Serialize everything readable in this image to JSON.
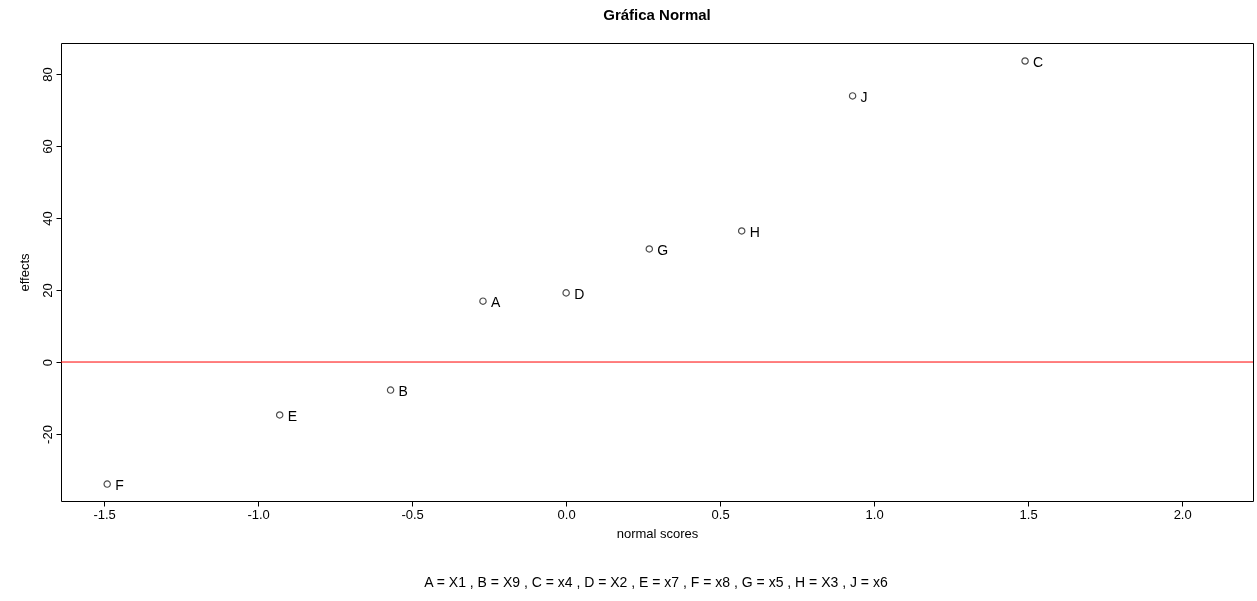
{
  "chart_data": {
    "type": "scatter",
    "title": "Gráfica Normal",
    "xlabel": "normal scores",
    "ylabel": "effects",
    "x": [
      -1.49,
      -0.93,
      -0.57,
      -0.27,
      0.0,
      0.27,
      0.57,
      0.93,
      1.49
    ],
    "series": [
      {
        "color": "#000000",
        "values": [
          -33.9,
          -14.7,
          -7.8,
          16.9,
          19.2,
          31.4,
          36.4,
          73.9,
          83.6
        ]
      }
    ],
    "marker": "circle",
    "grid": false,
    "xlim": [
      -1.64,
      2.23
    ],
    "xticks": [
      -1.5,
      {
        "value": -1.0,
        "label": "-1.0"
      },
      -0.5,
      {
        "value": 0,
        "label": "0.0"
      },
      0.5,
      {
        "value": 1.0,
        "label": "1.0"
      },
      1.5,
      {
        "value": 2.0,
        "label": "2.0"
      }
    ],
    "ylim": [
      -38.6,
      88.6
    ],
    "yticks": [
      -20,
      0,
      20,
      40,
      60,
      80
    ],
    "ref_lines": [
      {
        "axis": "y",
        "value": 0,
        "color": "#ff0000"
      }
    ],
    "annotations": [
      {
        "text": "F",
        "x": -1.49,
        "y": -33.9
      },
      {
        "text": "E",
        "x": -0.93,
        "y": -14.7
      },
      {
        "text": "B",
        "x": -0.57,
        "y": -7.8
      },
      {
        "text": "A",
        "x": -0.27,
        "y": 16.9
      },
      {
        "text": "D",
        "x": 0.0,
        "y": 19.2
      },
      {
        "text": "G",
        "x": 0.27,
        "y": 31.4
      },
      {
        "text": "H",
        "x": 0.57,
        "y": 36.4
      },
      {
        "text": "J",
        "x": 0.93,
        "y": 73.9
      },
      {
        "text": "C",
        "x": 1.49,
        "y": 83.6
      },
      "A = X1 ,  B = X9 ,  C = x4 ,  D = X2 ,  E = x7 ,  F = x8 ,  G = x5 ,  H = X3 ,  J = x6"
    ]
  }
}
